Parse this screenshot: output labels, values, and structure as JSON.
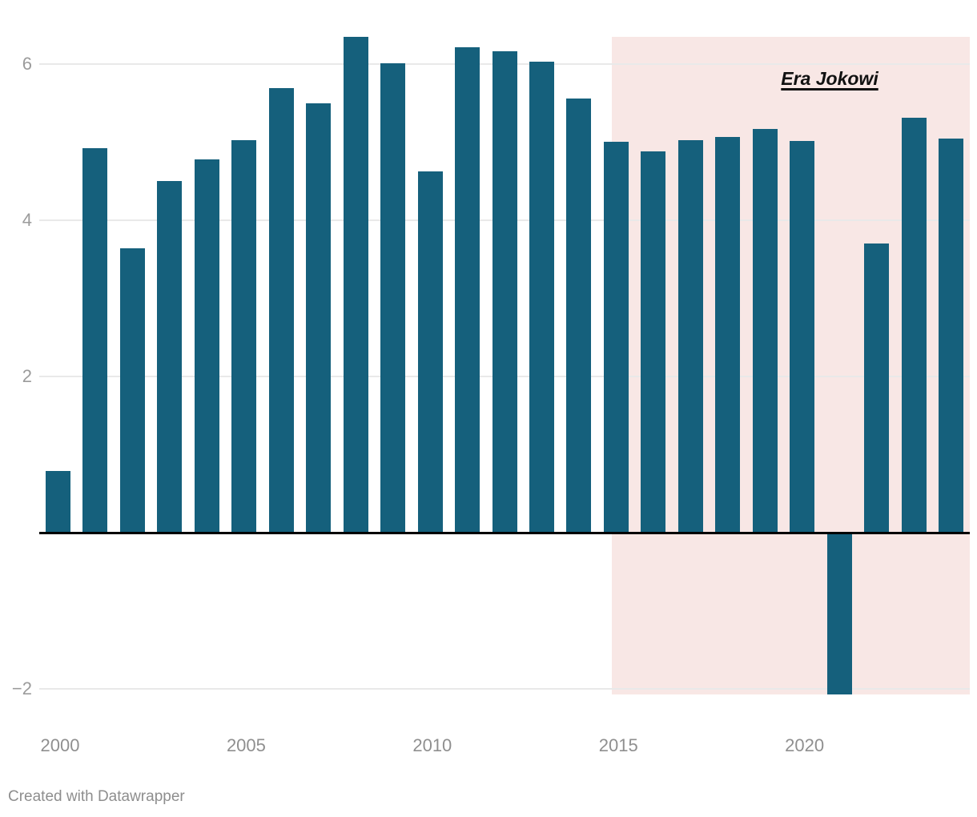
{
  "chart_data": {
    "type": "bar",
    "title": "",
    "xlabel": "",
    "ylabel": "",
    "x": [
      1999,
      2000,
      2001,
      2002,
      2003,
      2004,
      2005,
      2006,
      2007,
      2008,
      2009,
      2010,
      2011,
      2012,
      2013,
      2014,
      2015,
      2016,
      2017,
      2018,
      2019,
      2020,
      2021,
      2022,
      2023
    ],
    "values": [
      0.79,
      4.92,
      3.64,
      4.5,
      4.78,
      5.03,
      5.69,
      5.5,
      6.35,
      6.01,
      4.63,
      6.22,
      6.17,
      6.03,
      5.56,
      5.01,
      4.88,
      5.03,
      5.07,
      5.17,
      5.02,
      -2.07,
      3.7,
      5.31,
      5.05
    ],
    "ylim": [
      -2.07,
      6.35
    ],
    "grid": "horizontal",
    "legend": "none",
    "bar_color": "#15607C",
    "gridline_color": "#e9e9e9",
    "zero_line_color": "#000000",
    "y_ticks": [
      {
        "value": 6,
        "label": "6"
      },
      {
        "value": 4,
        "label": "4"
      },
      {
        "value": 2,
        "label": "2"
      },
      {
        "value": -2,
        "label": "−2"
      }
    ],
    "x_ticks": [
      {
        "value": 2000,
        "label": "2000"
      },
      {
        "value": 2005,
        "label": "2005"
      },
      {
        "value": 2010,
        "label": "2010"
      },
      {
        "value": 2015,
        "label": "2015"
      },
      {
        "value": 2020,
        "label": "2020"
      }
    ],
    "highlight": {
      "label": "Era Jokowi",
      "start_x": 2014.38,
      "end_x": 2024,
      "color": "#F8E7E5"
    }
  },
  "footer": {
    "credit": "Created with Datawrapper"
  }
}
